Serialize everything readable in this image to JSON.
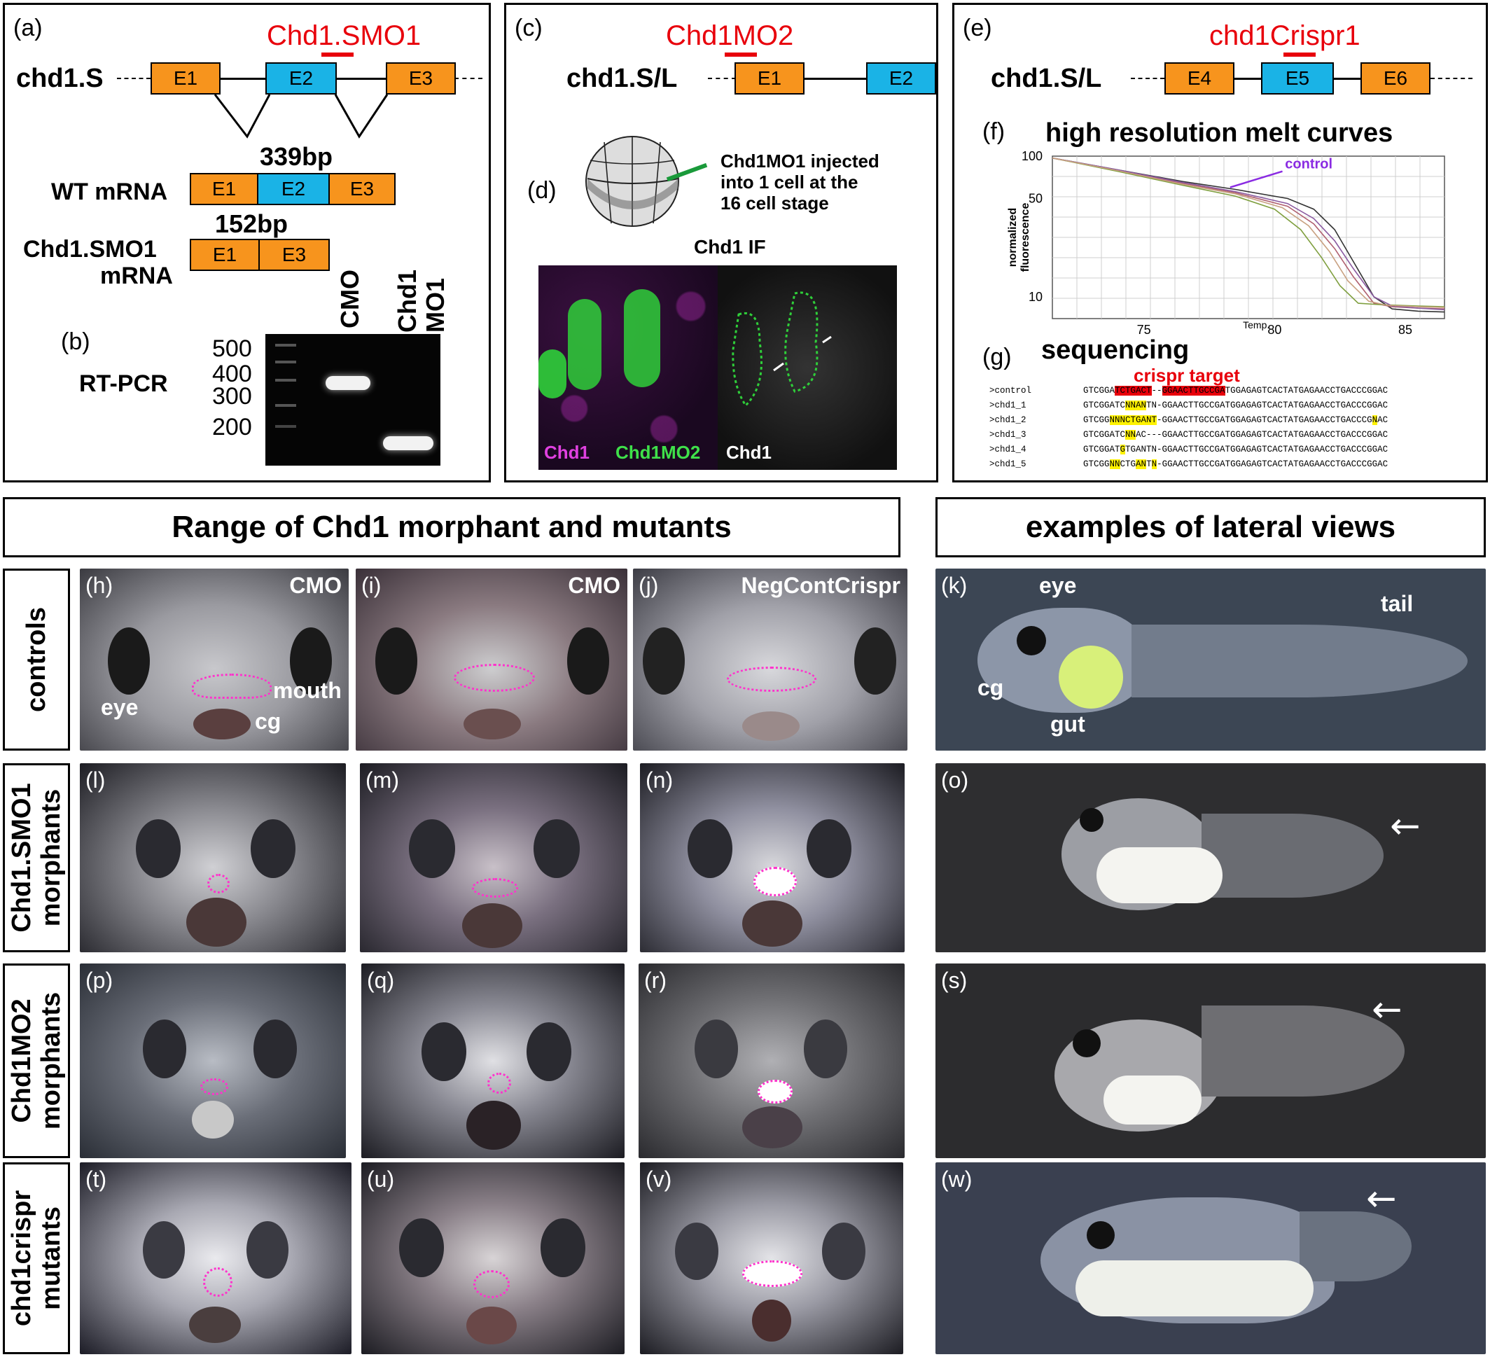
{
  "panel_a": {
    "label": "(a)",
    "morpholino": "Chd1.SMO1",
    "gene": "chd1.S",
    "exons": [
      "E1",
      "E2",
      "E3"
    ],
    "wt_size": "339bp",
    "wt_label": "WT mRNA",
    "mo_size": "152bp",
    "mo_label_1": "Chd1.SMO1",
    "mo_label_2": "mRNA"
  },
  "panel_b": {
    "label": "(b)",
    "method": "RT-PCR",
    "ladder": [
      "500",
      "400",
      "300",
      "200"
    ],
    "lane1": "CMO",
    "lane2_1": "Chd1",
    "lane2_2": "MO1"
  },
  "panel_c": {
    "label": "(c)",
    "morpholino": "Chd1MO2",
    "gene": "chd1.S/L",
    "exons": [
      "E1",
      "E2"
    ]
  },
  "panel_d": {
    "label": "(d)",
    "inject_text_1": "Chd1MO1 injected",
    "inject_text_2": "into 1 cell at the",
    "inject_text_3": "16 cell stage",
    "if_title": "Chd1 IF",
    "legend_chd1": "Chd1",
    "legend_mo": "Chd1MO2",
    "legend_chd1_white": "Chd1"
  },
  "panel_e": {
    "label": "(e)",
    "crispr": "chd1Crispr1",
    "gene": "chd1.S/L",
    "exons": [
      "E4",
      "E5",
      "E6"
    ]
  },
  "panel_f": {
    "label": "(f)",
    "title": "high resolution melt curves",
    "control_label": "control"
  },
  "chart_data": {
    "type": "line",
    "title": "high resolution melt curves",
    "xlabel": "Temp.",
    "ylabel": "normalized fluorescence",
    "xlim": [
      71.5,
      86.5
    ],
    "ylim": [
      7,
      100
    ],
    "ylog": true,
    "xticks": [
      "75",
      "80",
      "85"
    ],
    "yticks": [
      "100",
      "50",
      "10"
    ],
    "grid": true,
    "series": [
      {
        "name": "control",
        "color": "#333333",
        "x": [
          71.5,
          74,
          76.5,
          78.5,
          80.5,
          81.5,
          82.3,
          83,
          83.8,
          84.5,
          85.5,
          86.5
        ],
        "y": [
          97,
          80,
          66,
          58,
          50,
          42,
          30,
          18,
          10,
          8.2,
          7.9,
          7.8
        ]
      },
      {
        "color": "#b06070",
        "x": [
          71.5,
          74,
          76.5,
          78.5,
          80.5,
          81.5,
          82.3,
          83,
          83.8,
          84.5,
          85.5,
          86.5
        ],
        "y": [
          97,
          79,
          64,
          55,
          44,
          33,
          22,
          14,
          9,
          8.5,
          8.3,
          8.2
        ]
      },
      {
        "color": "#7f9f3f",
        "x": [
          71.5,
          74,
          76.5,
          78.5,
          80,
          81,
          81.8,
          82.5,
          83.2,
          84,
          85.5,
          86.5
        ],
        "y": [
          97,
          78,
          62,
          52,
          42,
          30,
          19,
          12,
          9,
          8.8,
          8.6,
          8.5
        ]
      },
      {
        "color": "#8a5aa0",
        "x": [
          71.5,
          74,
          76.5,
          78.5,
          80.5,
          81.5,
          82.3,
          83,
          83.8,
          84.5,
          85.5,
          86.5
        ],
        "y": [
          97,
          80,
          65,
          56,
          46,
          36,
          25,
          16,
          10,
          8.6,
          8.3,
          8.1
        ]
      },
      {
        "color": "#c8a080",
        "x": [
          71.5,
          74,
          76.5,
          78.5,
          80.3,
          81.3,
          82.1,
          82.8,
          83.6,
          84.3,
          85.5,
          86.5
        ],
        "y": [
          97,
          79,
          63,
          54,
          43,
          32,
          21,
          13,
          9.3,
          8.7,
          8.5,
          8.4
        ]
      }
    ]
  },
  "panel_g": {
    "label": "(g)",
    "title": "sequencing",
    "target_label": "crispr target",
    "rows": [
      {
        "name": ">control",
        "segments": [
          {
            "t": "GTCGGA",
            "h": ""
          },
          {
            "t": "TCTGACT",
            "h": "r"
          },
          {
            "t": "--",
            "h": ""
          },
          {
            "t": "GGAACTTGCCGA",
            "h": "r"
          },
          {
            "t": "TGGAGAGTCACTATGAGAACCTGACCCGGAC",
            "h": ""
          }
        ]
      },
      {
        "name": ">chd1_1",
        "segments": [
          {
            "t": "GTCGGATC",
            "h": ""
          },
          {
            "t": "NNAN",
            "h": "y"
          },
          {
            "t": "TN-GGAACTTGCCGATGGAGAGTCACTATGAGAACCTGACCCGGAC",
            "h": ""
          }
        ]
      },
      {
        "name": ">chd1_2",
        "segments": [
          {
            "t": "GTCGG",
            "h": ""
          },
          {
            "t": "NNNCTGANT",
            "h": "y"
          },
          {
            "t": "-GGAACTTGCCGATGGAGAGTCACTATGAGAACCTGACCCG",
            "h": ""
          },
          {
            "t": "N",
            "h": "y"
          },
          {
            "t": "AC",
            "h": ""
          }
        ]
      },
      {
        "name": ">chd1_3",
        "segments": [
          {
            "t": "GTCGGATC",
            "h": ""
          },
          {
            "t": "NN",
            "h": "y"
          },
          {
            "t": "AC---GGAACTTGCCGATGGAGAGTCACTATGAGAACCTGACCCGGAC",
            "h": ""
          }
        ]
      },
      {
        "name": ">chd1_4",
        "segments": [
          {
            "t": "GTCGGAT",
            "h": ""
          },
          {
            "t": "G",
            "h": "y"
          },
          {
            "t": "TGANTN-GGAACTTGCCGATGGAGAGTCACTATGAGAACCTGACCCGGAC",
            "h": ""
          }
        ]
      },
      {
        "name": ">chd1_5",
        "segments": [
          {
            "t": "GTCGG",
            "h": ""
          },
          {
            "t": "NN",
            "h": "y"
          },
          {
            "t": "CTG",
            "h": ""
          },
          {
            "t": "AN",
            "h": "y"
          },
          {
            "t": "T",
            "h": ""
          },
          {
            "t": "N",
            "h": "y"
          },
          {
            "t": "-GGAACTTGCCGATGGAGAGTCACTATGAGAACCTGACCCGGAC",
            "h": ""
          }
        ]
      }
    ]
  },
  "section_titles": {
    "left": "Range of Chd1 morphant and mutants",
    "right": "examples of lateral views"
  },
  "row_headers": [
    "controls",
    "Chd1.SMO1\nmorphants",
    "Chd1MO2\nmorphants",
    "chd1crispr\nmutants"
  ],
  "photos": {
    "h": {
      "label": "(h)",
      "tag": "CMO",
      "eye": "eye",
      "mouth": "mouth",
      "cg": "cg"
    },
    "i": {
      "label": "(i)",
      "tag": "CMO"
    },
    "j": {
      "label": "(j)",
      "tag": "NegContCrispr"
    },
    "k": {
      "label": "(k)",
      "eye": "eye",
      "tail": "tail",
      "cg": "cg",
      "gut": "gut"
    },
    "l": {
      "label": "(l)"
    },
    "m": {
      "label": "(m)"
    },
    "n": {
      "label": "(n)"
    },
    "o": {
      "label": "(o)"
    },
    "p": {
      "label": "(p)"
    },
    "q": {
      "label": "(q)"
    },
    "r": {
      "label": "(r)"
    },
    "s": {
      "label": "(s)"
    },
    "t": {
      "label": "(t)"
    },
    "u": {
      "label": "(u)"
    },
    "v": {
      "label": "(v)"
    },
    "w": {
      "label": "(w)"
    }
  },
  "colors": {
    "exon_orange": "#f7941d",
    "exon_blue": "#1ab3e6",
    "title_red": "#e8000b",
    "mouth_outline": "#ff33cc",
    "control_purple": "#8a2be2"
  }
}
